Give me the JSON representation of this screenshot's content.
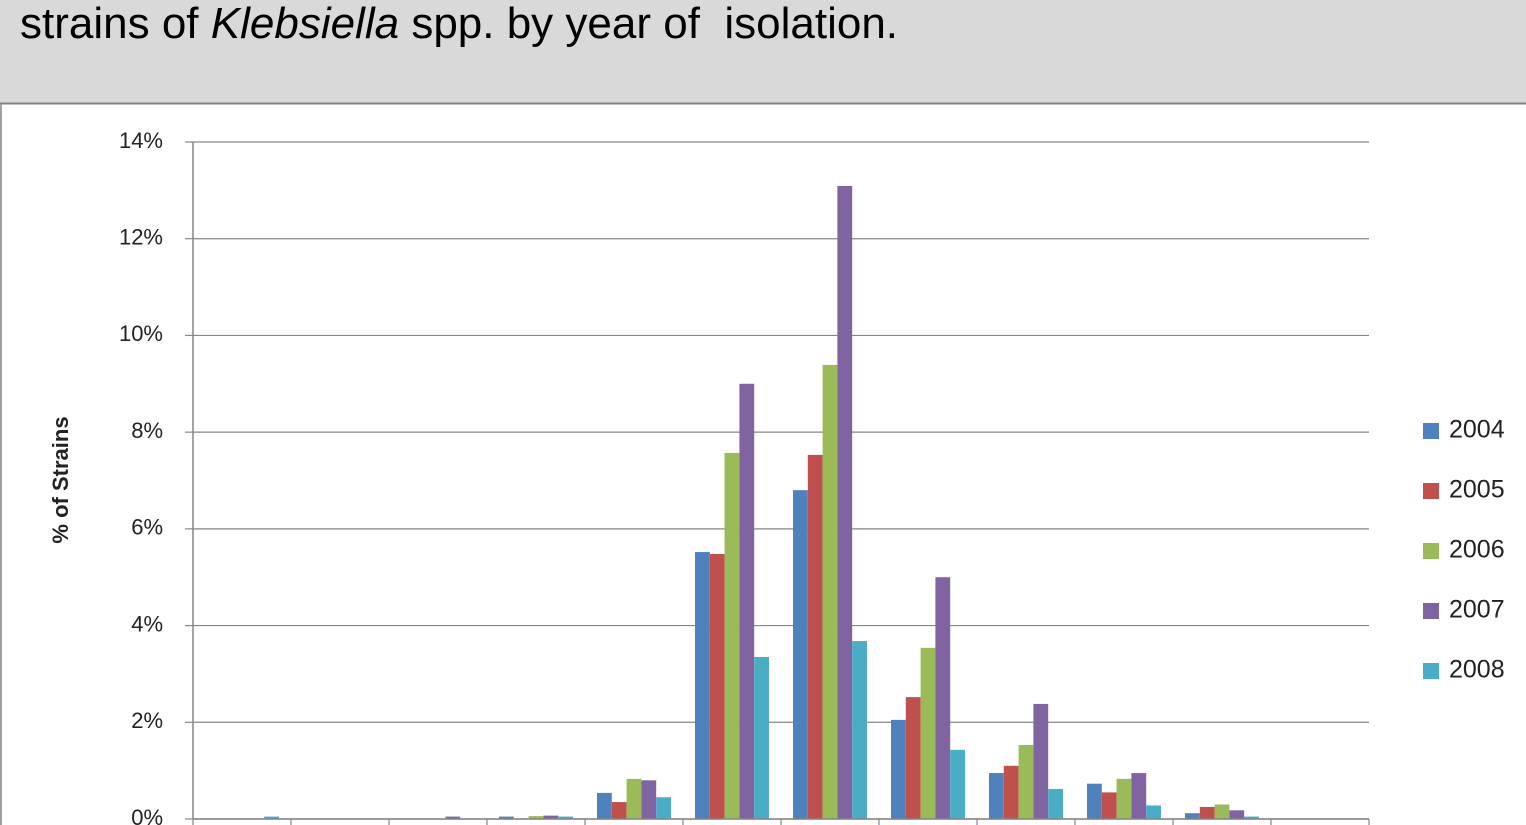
{
  "chart_data": {
    "type": "bar",
    "title_parts": [
      "strains of ",
      "Klebsiella",
      " spp. by year of  isolation."
    ],
    "y_label": "% of Strains",
    "categories": [
      null,
      null,
      null,
      null,
      null,
      null,
      null,
      null,
      null,
      null,
      null,
      null
    ],
    "series": [
      {
        "name": "2004",
        "color": "#4f81bd",
        "values": [
          0,
          0,
          0,
          0.05,
          0.54,
          5.52,
          6.8,
          2.05,
          0.95,
          0.73,
          0.12,
          0
        ]
      },
      {
        "name": "2005",
        "color": "#c0504d",
        "values": [
          0,
          0,
          0,
          0,
          0.35,
          5.48,
          7.53,
          2.52,
          1.1,
          0.55,
          0.25,
          0
        ]
      },
      {
        "name": "2006",
        "color": "#9bbb59",
        "values": [
          0,
          0,
          0,
          0.06,
          0.83,
          7.57,
          9.39,
          3.54,
          1.53,
          0.83,
          0.3,
          0
        ]
      },
      {
        "name": "2007",
        "color": "#8064a2",
        "values": [
          0,
          0,
          0.05,
          0.07,
          0.8,
          9.0,
          13.09,
          5.0,
          2.38,
          0.95,
          0.18,
          0
        ]
      },
      {
        "name": "2008",
        "color": "#4bacc6",
        "values": [
          0.05,
          0,
          0,
          0.05,
          0.45,
          3.35,
          3.68,
          1.43,
          0.62,
          0.28,
          0.05,
          0
        ]
      }
    ],
    "ylim": [
      0,
      14
    ],
    "yticks": [
      {
        "value": 0,
        "label": "0%"
      },
      {
        "value": 2,
        "label": "2%"
      },
      {
        "value": 4,
        "label": "4%"
      },
      {
        "value": 6,
        "label": "6%"
      },
      {
        "value": 8,
        "label": "8%"
      },
      {
        "value": 10,
        "label": "10%"
      },
      {
        "value": 12,
        "label": "12%"
      },
      {
        "value": 14,
        "label": "14%"
      }
    ],
    "grid": true,
    "legend": "right"
  }
}
